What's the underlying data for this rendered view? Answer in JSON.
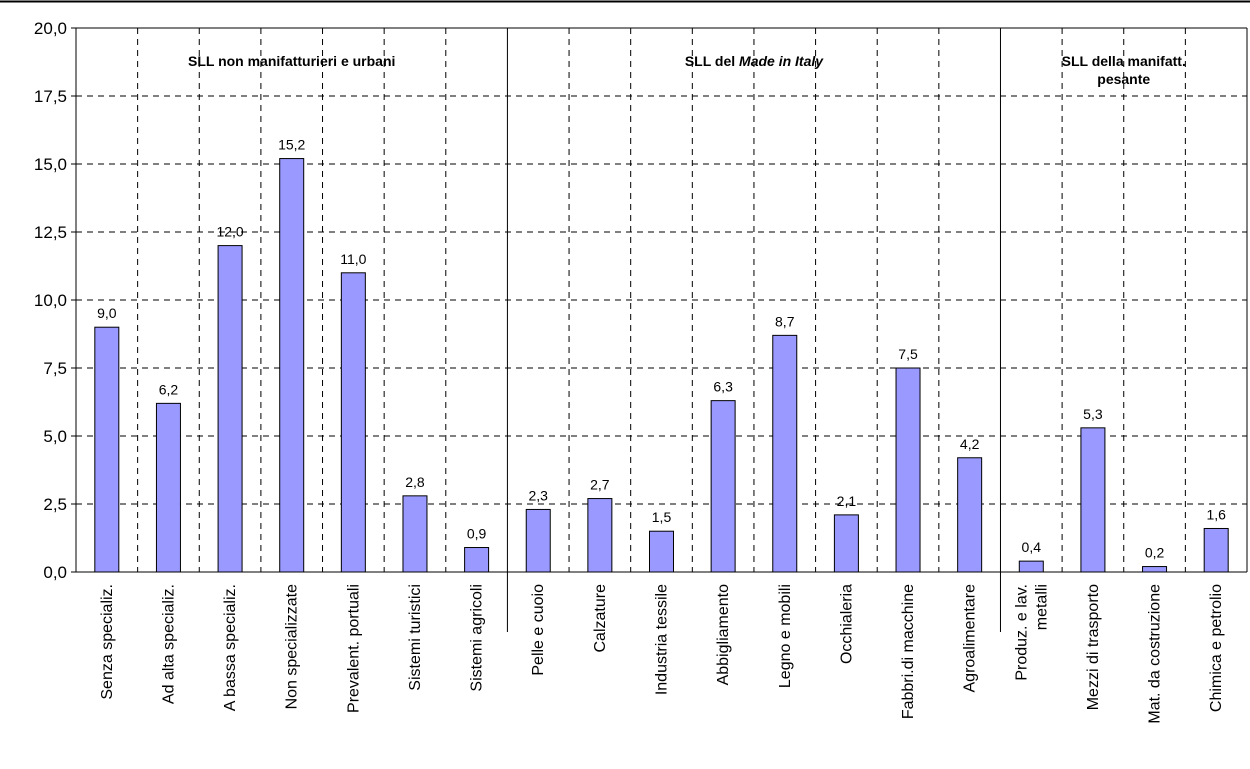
{
  "chart_data": {
    "type": "bar",
    "categories": [
      "Senza specializ.",
      "Ad alta specializ.",
      "A bassa specializ.",
      "Non specializzate",
      "Prevalent. portuali",
      "Sistemi turistici",
      "Sistemi agricoli",
      "Pelle e cuoio",
      "Calzature",
      "Industria tessile",
      "Abbigliamento",
      "Legno e mobili",
      "Occhialeria",
      "Fabbri.di macchine",
      "Agroalimentare",
      "Produz. e lav. metalli",
      "Mezzi di trasporto",
      "Mat. da costruzione",
      "Chimica e petrolio"
    ],
    "values": [
      9.0,
      6.2,
      12.0,
      15.2,
      11.0,
      2.8,
      0.9,
      2.3,
      2.7,
      1.5,
      6.3,
      8.7,
      2.1,
      7.5,
      4.2,
      0.4,
      5.3,
      0.2,
      1.6
    ],
    "value_labels": [
      "9,0",
      "6,2",
      "12,0",
      "15,2",
      "11,0",
      "2,8",
      "0,9",
      "2,3",
      "2,7",
      "1,5",
      "6,3",
      "8,7",
      "2,1",
      "7,5",
      "4,2",
      "0,4",
      "5,3",
      "0,2",
      "1,6"
    ],
    "ylim": [
      0,
      20
    ],
    "yticks": [
      0,
      2.5,
      5,
      7.5,
      10,
      12.5,
      15,
      17.5,
      20
    ],
    "ytick_labels": [
      "0,0",
      "2,5",
      "5,0",
      "7,5",
      "10,0",
      "12,5",
      "15,0",
      "17,5",
      "20,0"
    ],
    "grid": "dashed",
    "bar_color": "#9999ff",
    "groups": [
      {
        "name": "SLL non manifatturieri e urbani",
        "start": 0,
        "end": 6
      },
      {
        "name_parts": [
          "SLL del ",
          "Made in Italy"
        ],
        "start": 7,
        "end": 14
      },
      {
        "name_lines": [
          "SLL della manifatt.",
          "pesante"
        ],
        "start": 15,
        "end": 18
      }
    ],
    "xlabel": "",
    "ylabel": "",
    "title": ""
  }
}
